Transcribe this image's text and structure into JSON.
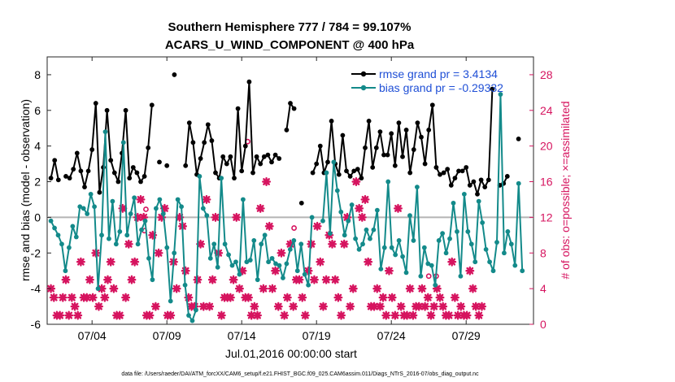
{
  "chart_data": {
    "type": "line",
    "title_line1": "Southern Hemisphere 777 / 784 = 99.107%",
    "title_line2": "ACARS_U_WIND_COMPONENT @ 400 hPa",
    "xlabel": "Jul.01,2016 00:00:00 start",
    "ylabel": "rmse and bias (model - observation)",
    "ylabel_right": "# of obs: o=possible; ×=assimilated",
    "footer": "data file: /Users/raeder/DAI/ATM_forcXX/CAM6_setup/f.e21.FHIST_BGC.f09_025.CAM6assim.011/Diags_NTrS_2016-07/obs_diag_output.nc",
    "xlim": [
      1,
      33.5
    ],
    "ylim": [
      -6,
      9
    ],
    "ylim_right": [
      0,
      30
    ],
    "x_ticks": [
      4,
      9,
      14,
      19,
      24,
      29
    ],
    "x_tick_labels": [
      "07/04",
      "07/09",
      "07/14",
      "07/19",
      "07/24",
      "07/29"
    ],
    "y_ticks": [
      -6,
      -4,
      -2,
      0,
      2,
      4,
      6,
      8
    ],
    "y_tick_labels": [
      "-6",
      "-4",
      "-2",
      "0",
      "2",
      "4",
      "6",
      "8"
    ],
    "y_right_ticks": [
      0,
      4,
      8,
      12,
      16,
      20,
      24,
      28
    ],
    "y_right_tick_labels": [
      "0",
      "4",
      "8",
      "12",
      "16",
      "20",
      "24",
      "28"
    ],
    "zero_line": 0,
    "colors": {
      "rmse": "#000000",
      "bias": "#138a8a",
      "obs": "#d6145f",
      "zero": "#b4b4b4",
      "legend_text": "#1f4fd6"
    },
    "series": [
      {
        "name": "rmse grand pr = 3.4134",
        "key": "rmse",
        "values": [
          2.2,
          3.2,
          2.1,
          null,
          2.3,
          2.2,
          2.7,
          3.6,
          2.6,
          1.7,
          2.6,
          3.8,
          6.4,
          1.4,
          2.8,
          6.0,
          3.2,
          2.5,
          2.0,
          3.6,
          6.0,
          2.2,
          2.8,
          2.5,
          2.0,
          2.3,
          3.9,
          6.3,
          null,
          3.1,
          null,
          2.9,
          null,
          8.0,
          null,
          null,
          2.9,
          5.3,
          4.2,
          2.4,
          3.3,
          4.2,
          5.2,
          4.3,
          2.5,
          2.2,
          3.4,
          3.0,
          3.4,
          2.2,
          6.1,
          2.6,
          4.0,
          7.6,
          2.5,
          3.4,
          3.0,
          3.4,
          3.5,
          3.1,
          3.5,
          3.3,
          null,
          4.9,
          6.4,
          6.1,
          null,
          0.8,
          null,
          null,
          2.5,
          3.0,
          4.0,
          2.5,
          3.1,
          5.4,
          3.0,
          2.4,
          4.6,
          2.6,
          2.3,
          2.6,
          2.7,
          2.2,
          3.9,
          5.4,
          2.8,
          3.9,
          4.8,
          3.5,
          3.5,
          4.7,
          2.9,
          5.3,
          3.4,
          4.9,
          2.5,
          3.8,
          5.3,
          4.5,
          3.0,
          4.9,
          6.3,
          2.8,
          2.4,
          2.5,
          2.7,
          1.8,
          2.2,
          2.6,
          2.6,
          2.8,
          1.8,
          2.0,
          1.3,
          2.1,
          1.7,
          2.1,
          7.2,
          null,
          1.8,
          1.9,
          2.3,
          null,
          null,
          4.4,
          null
        ],
        "x_start": 1.25,
        "x_step": 0.25
      },
      {
        "name": "bias grand pr = -0.29332",
        "key": "bias",
        "values": [
          -0.2,
          -0.6,
          -1.0,
          -1.5,
          -3.0,
          -1.7,
          -0.5,
          -1.1,
          0.6,
          0.5,
          0.2,
          1.3,
          0.6,
          -4.0,
          -1.0,
          4.8,
          -1.2,
          0.9,
          -1.5,
          -0.8,
          4.2,
          -1.0,
          0.2,
          1.1,
          -1.5,
          -0.7,
          -0.2,
          -2.3,
          -3.5,
          0.5,
          1.0,
          0.2,
          -1.7,
          -4.7,
          -2.0,
          1.0,
          0.6,
          -3.8,
          -5.5,
          -5.8,
          -5.2,
          2.3,
          0.5,
          0.1,
          -2.3,
          -1.5,
          -2.8,
          2.2,
          -1.5,
          -2.1,
          -2.7,
          -2.5,
          -3.2,
          1.0,
          -2.5,
          -2.4,
          -1.3,
          -3.5,
          -1.5,
          -1.0,
          -2.5,
          -2.3,
          -2.6,
          -2.7,
          -3.4,
          -2.6,
          -1.8,
          -1.3,
          -3.0,
          -1.5,
          -3.2,
          -3.8,
          0.0,
          null,
          null,
          -0.2,
          2.5,
          -0.9,
          3.1,
          1.5,
          0.3,
          -1.0,
          -0.2,
          0.7,
          -1.2,
          -1.8,
          -1.5,
          -0.7,
          -1.2,
          -0.7,
          0.4,
          -2.9,
          -1.7,
          2.0,
          -1.7,
          -2.1,
          -1.3,
          -2.2,
          -3.1,
          0.1,
          -1.3,
          1.7,
          -3.3,
          -1.7,
          -2.6,
          -2.7,
          -3.8,
          -1.3,
          -0.9,
          -2.0,
          -1.2,
          0.8,
          -0.8,
          -3.3,
          1.3,
          -0.8,
          -1.5,
          -2.5,
          0.9,
          -0.3,
          -1.8,
          -2.5,
          -3.0,
          -1.4,
          6.9,
          -2.0,
          -0.8,
          -1.5,
          -2.7,
          1.9,
          -3.0
        ]
      },
      {
        "name": "obs assimilated",
        "key": "obs",
        "marker": "×",
        "values": [
          4,
          3,
          1,
          1,
          3,
          5,
          1,
          3,
          2,
          1,
          7,
          3,
          3,
          5,
          3,
          8,
          2,
          4,
          3,
          5,
          7,
          4,
          1,
          1,
          13,
          3,
          9,
          5,
          7,
          12,
          14,
          12,
          1,
          1,
          10,
          2,
          8,
          12,
          13,
          1,
          1,
          7,
          4,
          12,
          11,
          6,
          3,
          2,
          2,
          5,
          9,
          2,
          14,
          2,
          5,
          12,
          8,
          1,
          3,
          3,
          3,
          5,
          12,
          4,
          6,
          3,
          3,
          1,
          2,
          1,
          13,
          4,
          16,
          11,
          4,
          6,
          2,
          8,
          1,
          3,
          9,
          2,
          5,
          5,
          3,
          1,
          6,
          9,
          5,
          11,
          7,
          2,
          5,
          10,
          9,
          5,
          3,
          1,
          9,
          12,
          2,
          4,
          16,
          13,
          12,
          14,
          7,
          2,
          2,
          4,
          2,
          3,
          1,
          6,
          3,
          1,
          13,
          2,
          1,
          1,
          4,
          1,
          2,
          2,
          4,
          2,
          3,
          1,
          2,
          4,
          3,
          2,
          1,
          1,
          7,
          3,
          1,
          2,
          1,
          1,
          6,
          4,
          2,
          1,
          2
        ],
        "x_start": 1.25,
        "x_step": 0.2
      },
      {
        "name": "obs possible",
        "key": "obs_possible",
        "marker": "o",
        "points": [
          [
            7.5,
            10.5
          ],
          [
            7.6,
            12.9
          ],
          [
            14.4,
            20.5
          ],
          [
            17.5,
            10.8
          ],
          [
            26.5,
            5.4
          ],
          [
            27.0,
            5.4
          ]
        ]
      }
    ]
  }
}
